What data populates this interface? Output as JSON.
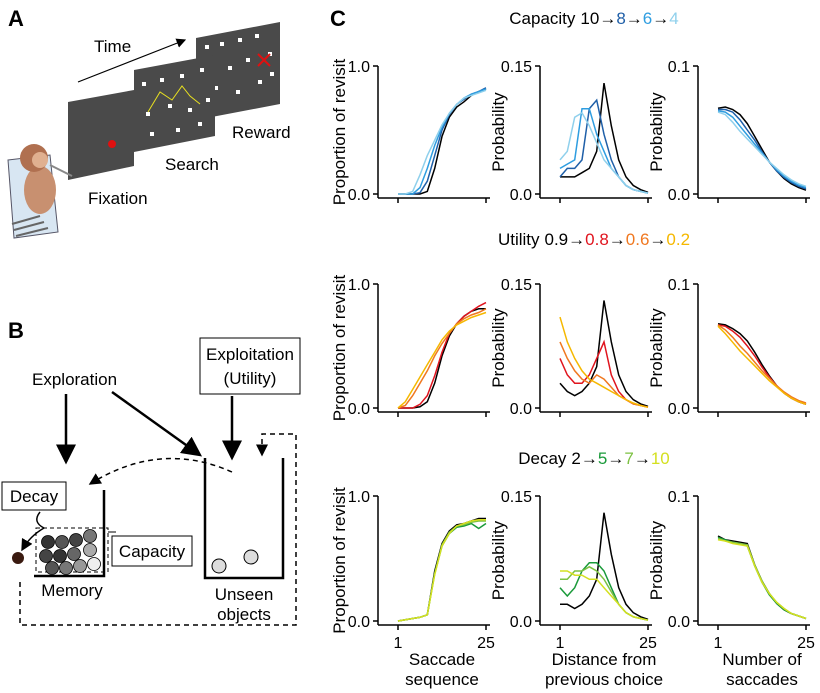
{
  "panel_a": {
    "letter": "A",
    "time": "Time",
    "fixation": "Fixation",
    "search": "Search",
    "reward": "Reward"
  },
  "panel_b": {
    "letter": "B",
    "exploration": "Exploration",
    "exploitation": "Exploitation",
    "utility": "(Utility)",
    "decay": "Decay",
    "capacity": "Capacity",
    "memory": "Memory",
    "unseen_1": "Unseen",
    "unseen_2": "objects"
  },
  "panel_c": {
    "letter": "C"
  },
  "chart_data": [
    {
      "type": "line",
      "ylabel": "Proportion of revisit",
      "x": [
        1,
        3,
        5,
        7,
        9,
        11,
        13,
        15,
        17,
        19,
        21,
        23,
        25
      ],
      "xlim": [
        1,
        25
      ],
      "ylim": [
        0,
        1
      ],
      "yticks": [
        {
          "value": 0,
          "label": "0.0"
        },
        {
          "value": 1,
          "label": "1.0"
        }
      ],
      "series": [
        {
          "color": "#000000",
          "values": [
            0,
            0,
            0,
            0,
            0.02,
            0.2,
            0.45,
            0.6,
            0.68,
            0.72,
            0.77,
            0.8,
            0.82
          ]
        },
        {
          "color": "#1f5fa8",
          "values": [
            0,
            0,
            0,
            0.01,
            0.1,
            0.3,
            0.5,
            0.62,
            0.7,
            0.74,
            0.78,
            0.8,
            0.83
          ]
        },
        {
          "color": "#2e9de0",
          "values": [
            0,
            0,
            0,
            0.05,
            0.2,
            0.38,
            0.52,
            0.63,
            0.7,
            0.75,
            0.78,
            0.8,
            0.82
          ]
        },
        {
          "color": "#8fd0ec",
          "values": [
            0,
            0,
            0.02,
            0.15,
            0.3,
            0.42,
            0.54,
            0.63,
            0.7,
            0.75,
            0.77,
            0.79,
            0.81
          ]
        }
      ]
    },
    {
      "type": "line",
      "legend_title": "Capacity",
      "legend_separator": "→",
      "ylabel": "Probability",
      "x": [
        1,
        3,
        5,
        7,
        9,
        11,
        13,
        15,
        17,
        19,
        21,
        23,
        25
      ],
      "xlim": [
        1,
        25
      ],
      "ylim": [
        0,
        0.15
      ],
      "yticks": [
        {
          "value": 0,
          "label": "0.0"
        },
        0.15
      ],
      "series": [
        {
          "name": "10",
          "color": "#000000",
          "values": [
            0.02,
            0.02,
            0.02,
            0.025,
            0.03,
            0.05,
            0.13,
            0.08,
            0.04,
            0.02,
            0.01,
            0.005,
            0.002
          ]
        },
        {
          "name": "8",
          "color": "#1f5fa8",
          "values": [
            0.02,
            0.03,
            0.03,
            0.04,
            0.1,
            0.11,
            0.07,
            0.04,
            0.02,
            0.01,
            0.005,
            0.003,
            0.001
          ]
        },
        {
          "name": "6",
          "color": "#2e9de0",
          "values": [
            0.03,
            0.035,
            0.04,
            0.1,
            0.1,
            0.07,
            0.05,
            0.03,
            0.02,
            0.01,
            0.005,
            0.003,
            0.001
          ]
        },
        {
          "name": "4",
          "color": "#8fd0ec",
          "values": [
            0.04,
            0.05,
            0.09,
            0.095,
            0.08,
            0.06,
            0.04,
            0.03,
            0.02,
            0.01,
            0.005,
            0.003,
            0.001
          ]
        }
      ]
    },
    {
      "type": "line",
      "ylabel": "Probability",
      "x": [
        1,
        3,
        5,
        7,
        9,
        11,
        13,
        15,
        17,
        19,
        21,
        23,
        25
      ],
      "xlim": [
        1,
        25
      ],
      "ylim": [
        0,
        0.1
      ],
      "yticks": [
        {
          "value": 0,
          "label": "0.0"
        },
        0.1
      ],
      "series": [
        {
          "color": "#000000",
          "values": [
            0.067,
            0.068,
            0.066,
            0.062,
            0.055,
            0.045,
            0.035,
            0.025,
            0.018,
            0.012,
            0.008,
            0.005,
            0.003
          ]
        },
        {
          "color": "#1f5fa8",
          "values": [
            0.066,
            0.066,
            0.064,
            0.058,
            0.05,
            0.042,
            0.033,
            0.025,
            0.018,
            0.013,
            0.009,
            0.006,
            0.004
          ]
        },
        {
          "color": "#2e9de0",
          "values": [
            0.065,
            0.064,
            0.06,
            0.053,
            0.046,
            0.039,
            0.032,
            0.025,
            0.019,
            0.014,
            0.01,
            0.007,
            0.005
          ]
        },
        {
          "color": "#8fd0ec",
          "values": [
            0.064,
            0.062,
            0.056,
            0.049,
            0.043,
            0.037,
            0.031,
            0.025,
            0.02,
            0.015,
            0.011,
            0.008,
            0.006
          ]
        }
      ]
    },
    {
      "type": "line",
      "ylabel": "Proportion of revisit",
      "x": [
        1,
        3,
        5,
        7,
        9,
        11,
        13,
        15,
        17,
        19,
        21,
        23,
        25
      ],
      "xlim": [
        1,
        25
      ],
      "ylim": [
        0,
        1
      ],
      "yticks": [
        {
          "value": 0,
          "label": "0.0"
        },
        {
          "value": 1,
          "label": "1.0"
        }
      ],
      "series": [
        {
          "color": "#000000",
          "values": [
            0,
            0,
            0,
            0.01,
            0.05,
            0.2,
            0.42,
            0.58,
            0.68,
            0.74,
            0.78,
            0.8,
            0.8
          ]
        },
        {
          "color": "#e0141e",
          "values": [
            0,
            0,
            0,
            0.03,
            0.1,
            0.26,
            0.45,
            0.6,
            0.68,
            0.74,
            0.78,
            0.82,
            0.85
          ]
        },
        {
          "color": "#f07820",
          "values": [
            0,
            0.02,
            0.1,
            0.2,
            0.3,
            0.42,
            0.52,
            0.6,
            0.68,
            0.72,
            0.75,
            0.77,
            0.8
          ]
        },
        {
          "color": "#f5b800",
          "values": [
            0,
            0.05,
            0.15,
            0.25,
            0.35,
            0.45,
            0.55,
            0.62,
            0.67,
            0.7,
            0.73,
            0.75,
            0.77
          ]
        }
      ]
    },
    {
      "type": "line",
      "legend_title": "Utility",
      "legend_separator": "→",
      "ylabel": "Probability",
      "x": [
        1,
        3,
        5,
        7,
        9,
        11,
        13,
        15,
        17,
        19,
        21,
        23,
        25
      ],
      "xlim": [
        1,
        25
      ],
      "ylim": [
        0,
        0.15
      ],
      "yticks": [
        {
          "value": 0,
          "label": "0.0"
        },
        0.15
      ],
      "series": [
        {
          "name": "0.9",
          "color": "#000000",
          "values": [
            0.03,
            0.02,
            0.015,
            0.02,
            0.03,
            0.05,
            0.13,
            0.08,
            0.04,
            0.02,
            0.01,
            0.005,
            0.002
          ]
        },
        {
          "name": "0.8",
          "color": "#e0141e",
          "values": [
            0.06,
            0.04,
            0.03,
            0.03,
            0.04,
            0.06,
            0.08,
            0.04,
            0.02,
            0.01,
            0.005,
            0.003,
            0.001
          ]
        },
        {
          "name": "0.6",
          "color": "#f07820",
          "values": [
            0.08,
            0.06,
            0.045,
            0.035,
            0.03,
            0.04,
            0.035,
            0.025,
            0.015,
            0.01,
            0.005,
            0.003,
            0.001
          ]
        },
        {
          "name": "0.2",
          "color": "#f5b800",
          "values": [
            0.11,
            0.08,
            0.06,
            0.045,
            0.035,
            0.03,
            0.025,
            0.02,
            0.015,
            0.01,
            0.006,
            0.003,
            0.001
          ]
        }
      ]
    },
    {
      "type": "line",
      "ylabel": "Probability",
      "x": [
        1,
        3,
        5,
        7,
        9,
        11,
        13,
        15,
        17,
        19,
        21,
        23,
        25
      ],
      "xlim": [
        1,
        25
      ],
      "ylim": [
        0,
        0.1
      ],
      "yticks": [
        {
          "value": 0,
          "label": "0.0"
        },
        0.1
      ],
      "series": [
        {
          "color": "#000000",
          "values": [
            0.068,
            0.067,
            0.064,
            0.06,
            0.054,
            0.045,
            0.035,
            0.026,
            0.018,
            0.012,
            0.008,
            0.005,
            0.003
          ]
        },
        {
          "color": "#e0141e",
          "values": [
            0.067,
            0.066,
            0.062,
            0.057,
            0.05,
            0.042,
            0.033,
            0.025,
            0.018,
            0.012,
            0.008,
            0.005,
            0.003
          ]
        },
        {
          "color": "#f07820",
          "values": [
            0.067,
            0.063,
            0.057,
            0.05,
            0.044,
            0.037,
            0.03,
            0.024,
            0.018,
            0.013,
            0.009,
            0.006,
            0.004
          ]
        },
        {
          "color": "#f5b800",
          "values": [
            0.066,
            0.06,
            0.053,
            0.046,
            0.04,
            0.034,
            0.028,
            0.022,
            0.017,
            0.012,
            0.008,
            0.005,
            0.003
          ]
        }
      ]
    },
    {
      "type": "line",
      "ylabel": "Proportion of revisit",
      "xlabel": "Saccade sequence",
      "x": [
        1,
        3,
        5,
        7,
        9,
        11,
        13,
        15,
        17,
        19,
        21,
        23,
        25
      ],
      "xlim": [
        1,
        25
      ],
      "xticks": [
        1,
        25
      ],
      "ylim": [
        0,
        1
      ],
      "yticks": [
        {
          "value": 0,
          "label": "0.0"
        },
        {
          "value": 1,
          "label": "1.0"
        }
      ],
      "series": [
        {
          "color": "#000000",
          "values": [
            0,
            0.01,
            0.02,
            0.03,
            0.05,
            0.4,
            0.62,
            0.72,
            0.77,
            0.78,
            0.8,
            0.82,
            0.82
          ]
        },
        {
          "color": "#1a9a3a",
          "values": [
            0,
            0.01,
            0.02,
            0.03,
            0.05,
            0.38,
            0.6,
            0.7,
            0.75,
            0.76,
            0.78,
            0.74,
            0.78
          ]
        },
        {
          "color": "#7cc142",
          "values": [
            0,
            0.01,
            0.02,
            0.03,
            0.05,
            0.38,
            0.61,
            0.71,
            0.76,
            0.77,
            0.79,
            0.8,
            0.8
          ]
        },
        {
          "color": "#d4e020",
          "values": [
            0,
            0.01,
            0.02,
            0.03,
            0.05,
            0.37,
            0.6,
            0.7,
            0.76,
            0.78,
            0.8,
            0.81,
            0.81
          ]
        }
      ]
    },
    {
      "type": "line",
      "legend_title": "Decay",
      "legend_separator": "→",
      "ylabel": "Probability",
      "xlabel": "Distance from previous choice",
      "x": [
        1,
        3,
        5,
        7,
        9,
        11,
        13,
        15,
        17,
        19,
        21,
        23,
        25
      ],
      "xlim": [
        1,
        25
      ],
      "xticks": [
        1,
        25
      ],
      "ylim": [
        0,
        0.15
      ],
      "yticks": [
        {
          "value": 0,
          "label": "0.0"
        },
        0.15
      ],
      "series": [
        {
          "name": "2",
          "color": "#000000",
          "values": [
            0.02,
            0.02,
            0.015,
            0.02,
            0.03,
            0.05,
            0.13,
            0.08,
            0.04,
            0.02,
            0.01,
            0.005,
            0.002
          ]
        },
        {
          "name": "5",
          "color": "#1a9a3a",
          "values": [
            0.04,
            0.03,
            0.04,
            0.06,
            0.07,
            0.07,
            0.06,
            0.04,
            0.02,
            0.01,
            0.005,
            0.003,
            0.001
          ]
        },
        {
          "name": "7",
          "color": "#7cc142",
          "values": [
            0.05,
            0.05,
            0.06,
            0.06,
            0.065,
            0.06,
            0.05,
            0.035,
            0.02,
            0.01,
            0.005,
            0.003,
            0.001
          ]
        },
        {
          "name": "10",
          "color": "#d4e020",
          "values": [
            0.06,
            0.06,
            0.055,
            0.055,
            0.05,
            0.05,
            0.04,
            0.03,
            0.02,
            0.01,
            0.005,
            0.003,
            0.001
          ]
        }
      ]
    },
    {
      "type": "line",
      "ylabel": "Probability",
      "xlabel": "Number of saccades",
      "x": [
        1,
        3,
        5,
        7,
        9,
        11,
        13,
        15,
        17,
        19,
        21,
        23,
        25
      ],
      "xlim": [
        1,
        25
      ],
      "xticks": [
        1,
        25
      ],
      "ylim": [
        0,
        0.1
      ],
      "yticks": [
        {
          "value": 0,
          "label": "0.0"
        },
        0.1
      ],
      "series": [
        {
          "color": "#000000",
          "values": [
            0.068,
            0.065,
            0.064,
            0.063,
            0.062,
            0.045,
            0.032,
            0.022,
            0.014,
            0.009,
            0.006,
            0.004,
            0.002
          ]
        },
        {
          "color": "#1a9a3a",
          "values": [
            0.067,
            0.065,
            0.063,
            0.062,
            0.06,
            0.044,
            0.031,
            0.021,
            0.014,
            0.009,
            0.006,
            0.004,
            0.002
          ]
        },
        {
          "color": "#7cc142",
          "values": [
            0.066,
            0.064,
            0.063,
            0.062,
            0.061,
            0.045,
            0.032,
            0.022,
            0.015,
            0.01,
            0.006,
            0.004,
            0.002
          ]
        },
        {
          "color": "#d4e020",
          "values": [
            0.065,
            0.064,
            0.062,
            0.061,
            0.06,
            0.044,
            0.031,
            0.022,
            0.015,
            0.01,
            0.006,
            0.004,
            0.002
          ]
        }
      ]
    }
  ]
}
